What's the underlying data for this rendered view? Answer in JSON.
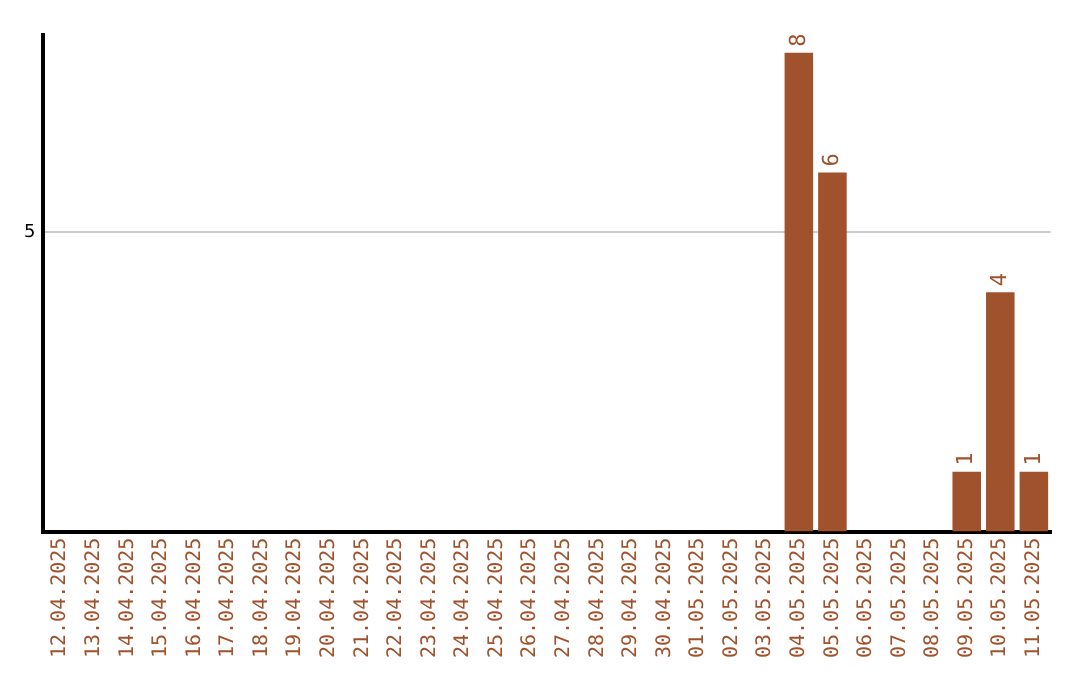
{
  "chart_data": {
    "type": "bar",
    "categories": [
      "12.04.2025",
      "13.04.2025",
      "14.04.2025",
      "15.04.2025",
      "16.04.2025",
      "17.04.2025",
      "18.04.2025",
      "19.04.2025",
      "20.04.2025",
      "21.04.2025",
      "22.04.2025",
      "23.04.2025",
      "24.04.2025",
      "25.04.2025",
      "26.04.2025",
      "27.04.2025",
      "28.04.2025",
      "29.04.2025",
      "30.04.2025",
      "01.05.2025",
      "02.05.2025",
      "03.05.2025",
      "04.05.2025",
      "05.05.2025",
      "06.05.2025",
      "07.05.2025",
      "08.05.2025",
      "09.05.2025",
      "10.05.2025",
      "11.05.2025"
    ],
    "values": [
      null,
      null,
      null,
      null,
      null,
      null,
      null,
      null,
      null,
      null,
      null,
      null,
      null,
      null,
      null,
      null,
      null,
      null,
      null,
      null,
      null,
      null,
      8,
      6,
      null,
      null,
      null,
      1,
      4,
      1
    ],
    "value_labels": [
      null,
      null,
      null,
      null,
      null,
      null,
      null,
      null,
      null,
      null,
      null,
      null,
      null,
      null,
      null,
      null,
      null,
      null,
      null,
      null,
      null,
      null,
      "8",
      "6",
      null,
      null,
      null,
      "1",
      "4",
      "1"
    ],
    "color": "#a0522d",
    "ylim": [
      0,
      8.3
    ],
    "yticks": [
      5
    ],
    "grid": "y",
    "legend": false
  }
}
